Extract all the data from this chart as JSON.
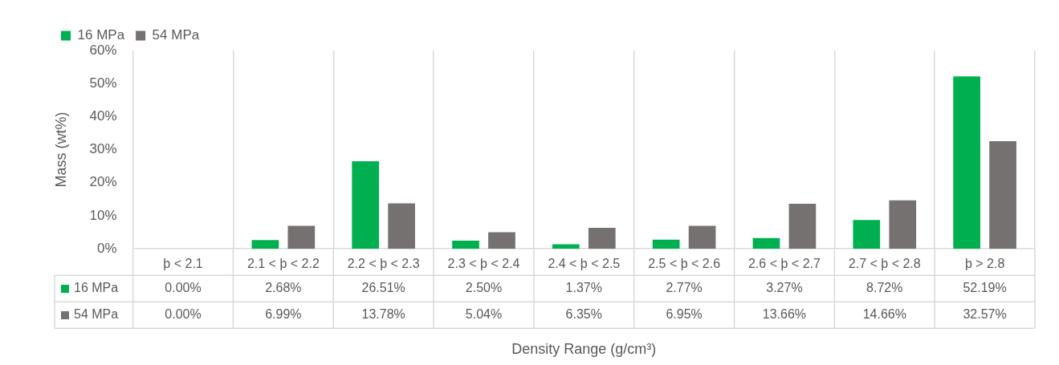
{
  "chart_data": {
    "type": "bar",
    "xlabel": "Density Range (g/cm³)",
    "ylabel": "Mass (wt%)",
    "categories": [
      "þ < 2.1",
      "2.1 < þ < 2.2",
      "2.2 < þ < 2.3",
      "2.3 < þ < 2.4",
      "2.4 < þ < 2.5",
      "2.5 < þ < 2.6",
      "2.6 < þ < 2.7",
      "2.7 < þ < 2.8",
      "þ > 2.8"
    ],
    "series": [
      {
        "name": "16 MPa",
        "color": "#00b050",
        "values": [
          0,
          2.68,
          26.51,
          2.5,
          1.37,
          2.77,
          3.27,
          8.72,
          52.19
        ],
        "value_labels": [
          "0.00%",
          "2.68%",
          "26.51%",
          "2.50%",
          "1.37%",
          "2.77%",
          "3.27%",
          "8.72%",
          "52.19%"
        ]
      },
      {
        "name": "54 MPa",
        "color": "#767171",
        "values": [
          0,
          6.99,
          13.78,
          5.04,
          6.35,
          6.95,
          13.66,
          14.66,
          32.57
        ],
        "value_labels": [
          "0.00%",
          "6.99%",
          "13.78%",
          "5.04%",
          "6.35%",
          "6.95%",
          "13.66%",
          "14.66%",
          "32.57%"
        ]
      }
    ],
    "ylim": [
      0,
      60
    ],
    "yticks": [
      {
        "value": 0,
        "label": "0%"
      },
      {
        "value": 10,
        "label": "10%"
      },
      {
        "value": 20,
        "label": "20%"
      },
      {
        "value": 30,
        "label": "30%"
      },
      {
        "value": 40,
        "label": "40%"
      },
      {
        "value": 50,
        "label": "50%"
      },
      {
        "value": 60,
        "label": "60%"
      }
    ],
    "grid": "x",
    "legend": "top left"
  }
}
